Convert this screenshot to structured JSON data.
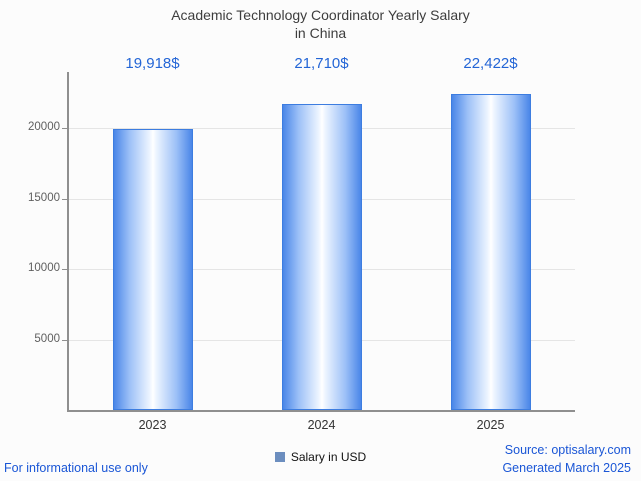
{
  "title": {
    "line1": "Academic Technology Coordinator Yearly Salary",
    "line2": "in China"
  },
  "chart_data": {
    "type": "bar",
    "title": "Academic Technology Coordinator Yearly Salary in China",
    "categories": [
      "2023",
      "2024",
      "2025"
    ],
    "values": [
      19918,
      21710,
      22422
    ],
    "value_labels": [
      "19,918$",
      "21,710$",
      "22,422$"
    ],
    "xlabel": "",
    "ylabel": "",
    "ylim": [
      0,
      24000
    ],
    "yticks": [
      5000,
      10000,
      15000,
      20000
    ],
    "ytick_labels": [
      "5000",
      "10000",
      "15000",
      "20000"
    ],
    "grid": true,
    "legend": [
      "Salary in USD"
    ],
    "legend_position": "bottom"
  },
  "legend": {
    "salary_label": "Salary in USD"
  },
  "footer": {
    "disclaimer": "For informational use only",
    "source": "Source: optisalary.com",
    "generated": "Generated March 2025"
  },
  "colors": {
    "bar_edge": "#4a86e8",
    "bar_border": "#3d7de0",
    "bar_center": "#ffffff",
    "value_label": "#2365d6",
    "footer_link": "#1a56d6",
    "axis": "#8f8f8f",
    "grid": "#e5e5e5",
    "legend_swatch": "#6c8ebf"
  }
}
